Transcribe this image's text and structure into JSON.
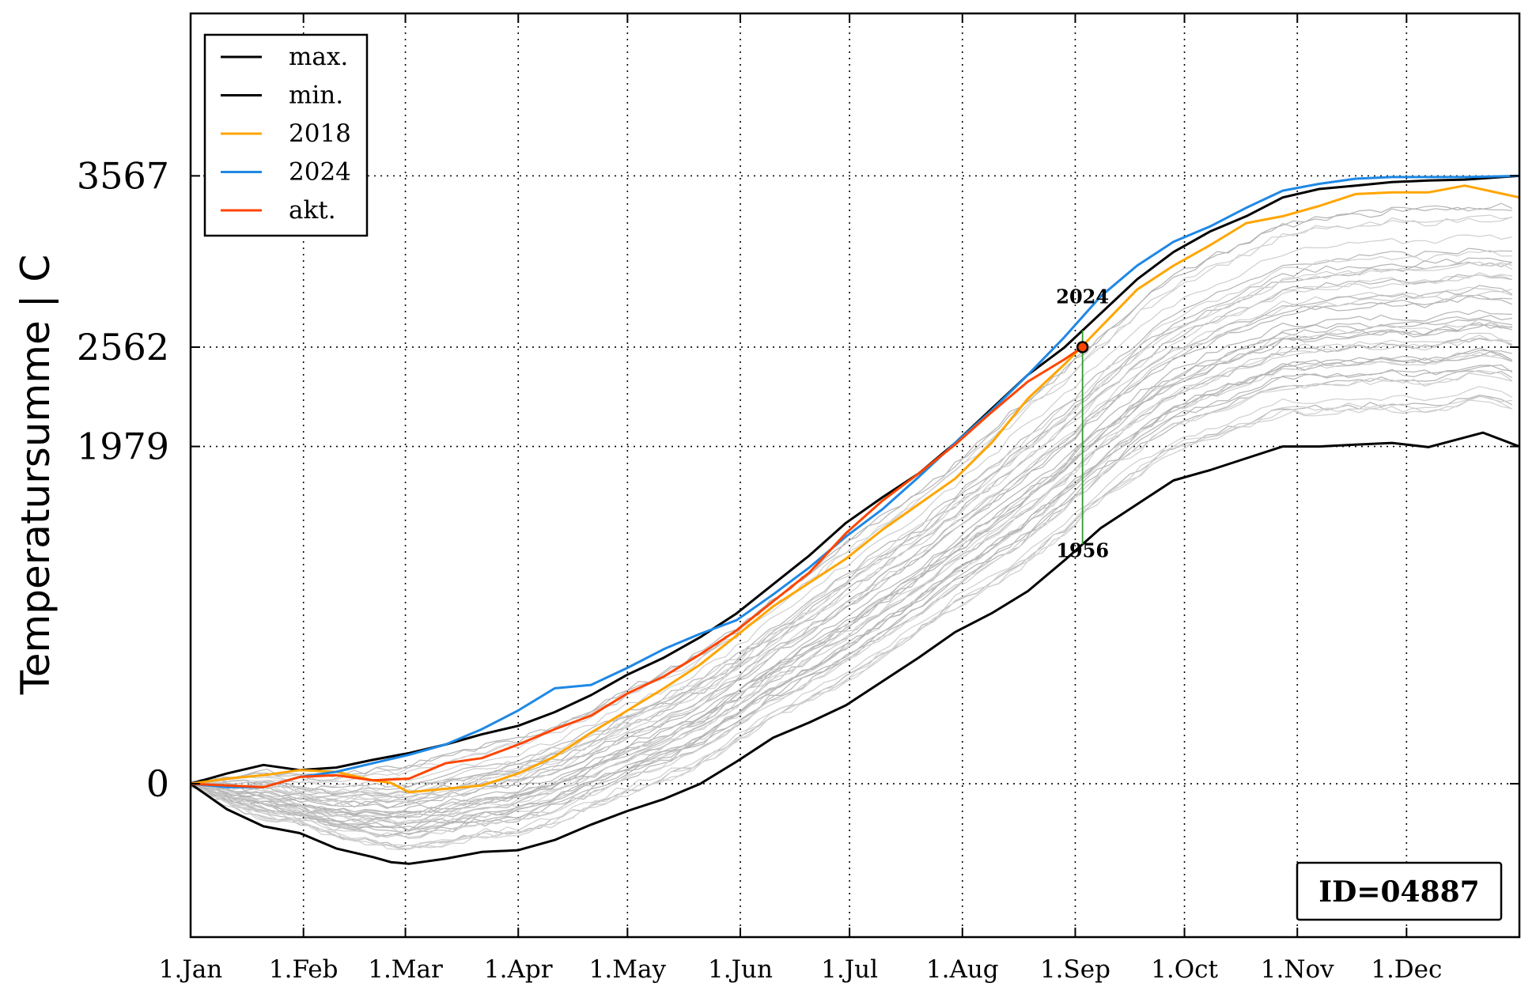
{
  "chart_data": {
    "type": "line",
    "title": "",
    "xlabel": "",
    "ylabel": "Temperatursumme | C",
    "xlim": [
      0,
      365
    ],
    "ylim": [
      -900,
      4520
    ],
    "x_ticks": [
      {
        "day": 0,
        "label": "1.Jan"
      },
      {
        "day": 31,
        "label": "1.Feb"
      },
      {
        "day": 59,
        "label": "1.Mar"
      },
      {
        "day": 90,
        "label": "1.Apr"
      },
      {
        "day": 120,
        "label": "1.May"
      },
      {
        "day": 151,
        "label": "1.Jun"
      },
      {
        "day": 181,
        "label": "1.Jul"
      },
      {
        "day": 212,
        "label": "1.Aug"
      },
      {
        "day": 243,
        "label": "1.Sep"
      },
      {
        "day": 273,
        "label": "1.Oct"
      },
      {
        "day": 304,
        "label": "1.Nov"
      },
      {
        "day": 334,
        "label": "1.Dec"
      }
    ],
    "y_ticks": [
      {
        "value": 0,
        "label": "0"
      },
      {
        "value": 1979,
        "label": "1979"
      },
      {
        "value": 2562,
        "label": "2562"
      },
      {
        "value": 3567,
        "label": "3567"
      }
    ],
    "grid": "dotted",
    "legend_position": "top-left",
    "series": [
      {
        "name": "max.",
        "color": "#000000",
        "x": [
          0,
          10,
          20,
          30,
          40,
          50,
          60,
          70,
          80,
          90,
          100,
          110,
          120,
          130,
          140,
          150,
          160,
          170,
          180,
          190,
          200,
          210,
          220,
          230,
          240,
          250,
          260,
          270,
          280,
          290,
          300,
          310,
          320,
          330,
          340,
          350,
          365
        ],
        "y": [
          0,
          60,
          110,
          80,
          95,
          140,
          180,
          230,
          290,
          340,
          420,
          520,
          640,
          740,
          860,
          1000,
          1170,
          1340,
          1530,
          1680,
          1820,
          2000,
          2200,
          2400,
          2560,
          2760,
          2960,
          3120,
          3240,
          3330,
          3440,
          3490,
          3510,
          3530,
          3540,
          3545,
          3567
        ]
      },
      {
        "name": "min.",
        "color": "#000000",
        "x": [
          0,
          10,
          20,
          30,
          40,
          50,
          55,
          60,
          70,
          80,
          90,
          100,
          110,
          120,
          130,
          140,
          150,
          160,
          170,
          180,
          190,
          200,
          210,
          220,
          230,
          240,
          250,
          260,
          270,
          280,
          290,
          300,
          310,
          320,
          330,
          340,
          355,
          365
        ],
        "y": [
          0,
          -150,
          -250,
          -290,
          -380,
          -430,
          -460,
          -470,
          -440,
          -400,
          -390,
          -330,
          -240,
          -160,
          -90,
          0,
          130,
          270,
          360,
          460,
          600,
          740,
          890,
          1000,
          1130,
          1310,
          1500,
          1640,
          1780,
          1840,
          1910,
          1979,
          1979,
          1990,
          2000,
          1975,
          2060,
          1979
        ]
      },
      {
        "name": "2018",
        "color": "#ffa500",
        "x": [
          0,
          10,
          20,
          30,
          40,
          50,
          55,
          60,
          70,
          80,
          90,
          100,
          110,
          120,
          130,
          140,
          150,
          160,
          170,
          180,
          190,
          200,
          210,
          220,
          230,
          240,
          250,
          260,
          270,
          280,
          290,
          300,
          310,
          320,
          330,
          340,
          350,
          365
        ],
        "y": [
          0,
          30,
          50,
          80,
          70,
          20,
          5,
          -50,
          -30,
          -10,
          60,
          160,
          300,
          430,
          560,
          700,
          870,
          1040,
          1180,
          1320,
          1490,
          1640,
          1790,
          2000,
          2260,
          2460,
          2680,
          2900,
          3040,
          3160,
          3290,
          3330,
          3390,
          3460,
          3470,
          3470,
          3510,
          3440
        ]
      },
      {
        "name": "2024",
        "color": "#1e88e5",
        "x": [
          0,
          10,
          20,
          30,
          40,
          50,
          60,
          70,
          80,
          90,
          100,
          110,
          120,
          130,
          140,
          150,
          160,
          170,
          180,
          190,
          200,
          210,
          220,
          230,
          240,
          250,
          260,
          270,
          280,
          290,
          300,
          310,
          320,
          330,
          340,
          350,
          365
        ],
        "y": [
          0,
          -20,
          -20,
          40,
          70,
          120,
          170,
          230,
          320,
          430,
          560,
          580,
          680,
          790,
          880,
          960,
          1110,
          1270,
          1450,
          1610,
          1800,
          2000,
          2190,
          2400,
          2620,
          2860,
          3040,
          3180,
          3270,
          3380,
          3480,
          3520,
          3550,
          3560,
          3560,
          3560,
          3567
        ]
      },
      {
        "name": "akt.",
        "color": "#ff4500",
        "x": [
          0,
          10,
          20,
          30,
          40,
          50,
          60,
          70,
          80,
          90,
          100,
          110,
          120,
          130,
          140,
          150,
          160,
          170,
          180,
          190,
          200,
          210,
          220,
          230,
          240,
          245
        ],
        "y": [
          0,
          -10,
          -20,
          40,
          50,
          20,
          30,
          120,
          150,
          230,
          320,
          400,
          530,
          630,
          760,
          900,
          1070,
          1240,
          1470,
          1660,
          1820,
          1990,
          2180,
          2360,
          2490,
          2562
        ]
      }
    ],
    "marker": {
      "x": 245,
      "y": 2562
    },
    "annotations": [
      {
        "text": "2024",
        "x": 245,
        "y": 2820
      },
      {
        "text": "1956",
        "x": 245,
        "y": 1330
      }
    ],
    "id_box": "ID=04887"
  }
}
